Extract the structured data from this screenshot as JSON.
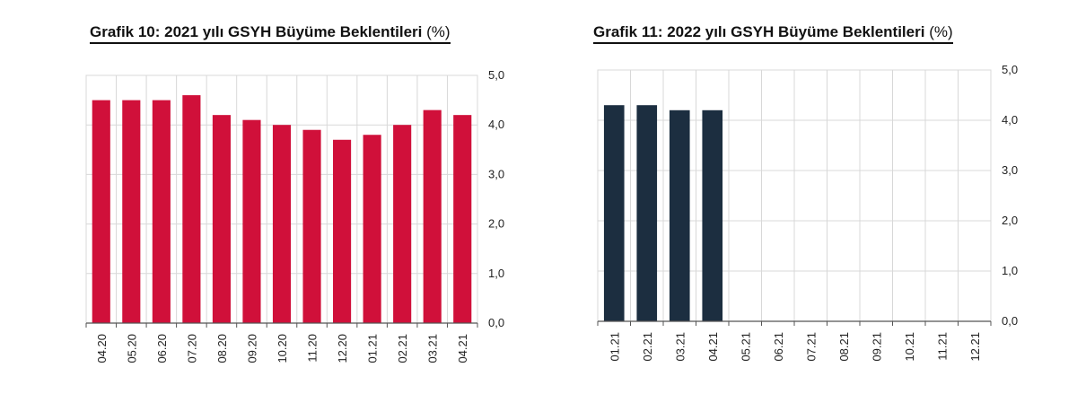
{
  "charts_meta": {
    "left_title_bold": "Grafik 10: 2021 yılı GSYH Büyüme Beklentileri",
    "left_title_unit": "(%)",
    "right_title_bold": "Grafik 11: 2022 yılı GSYH Büyüme Beklentileri",
    "right_title_unit": "(%)"
  },
  "chart_data": [
    {
      "type": "bar",
      "title": "Grafik 10: 2021 yılı GSYH Büyüme Beklentileri (%)",
      "categories": [
        "04.20",
        "05.20",
        "06.20",
        "07.20",
        "08.20",
        "09.20",
        "10.20",
        "11.20",
        "12.20",
        "01.21",
        "02.21",
        "03.21",
        "04.21"
      ],
      "values": [
        4.5,
        4.5,
        4.5,
        4.6,
        4.2,
        4.1,
        4.0,
        3.9,
        3.7,
        3.8,
        4.0,
        4.3,
        4.2
      ],
      "ylim": [
        0,
        5
      ],
      "yticks": [
        "0,0",
        "1,0",
        "2,0",
        "3,0",
        "4,0",
        "5,0"
      ],
      "y_axis_side": "right",
      "color": "#d0103a",
      "grid": true
    },
    {
      "type": "bar",
      "title": "Grafik 11: 2022 yılı GSYH Büyüme Beklentileri (%)",
      "categories": [
        "01.21",
        "02.21",
        "03.21",
        "04.21",
        "05.21",
        "06.21",
        "07.21",
        "08.21",
        "09.21",
        "10.21",
        "11.21",
        "12.21"
      ],
      "values": [
        4.3,
        4.3,
        4.2,
        4.2,
        null,
        null,
        null,
        null,
        null,
        null,
        null,
        null
      ],
      "ylim": [
        0,
        5
      ],
      "yticks": [
        "0,0",
        "1,0",
        "2,0",
        "3,0",
        "4,0",
        "5,0"
      ],
      "y_axis_side": "right",
      "color": "#1c2e40",
      "grid": true
    }
  ]
}
